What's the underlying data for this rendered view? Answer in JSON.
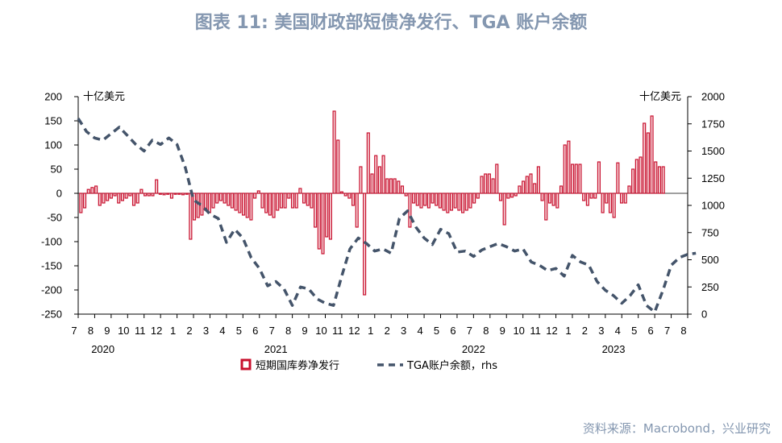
{
  "title": "图表 11: 美国财政部短债净发行、TGA 账户余额",
  "source": "资料来源：Macrobond，兴业研究",
  "colors": {
    "bar": "#c8102e",
    "line": "#44546a",
    "title": "#8497b0"
  },
  "chart_data": {
    "type": "bar",
    "left_unit": "十亿美元",
    "right_unit": "十亿美元",
    "left_axis": {
      "min": -250,
      "max": 200,
      "ticks": [
        "200",
        "150",
        "100",
        "50",
        "0",
        "-50",
        "-100",
        "-150",
        "-200",
        "-250"
      ]
    },
    "right_axis": {
      "min": 0,
      "max": 2000,
      "ticks": [
        "2000",
        "1750",
        "1500",
        "1250",
        "1000",
        "750",
        "500",
        "250",
        "0"
      ]
    },
    "x_tick_labels": [
      "7",
      "8",
      "9",
      "10",
      "11",
      "12",
      "1",
      "2",
      "3",
      "4",
      "5",
      "6",
      "7",
      "8",
      "9",
      "10",
      "11",
      "12",
      "1",
      "2",
      "3",
      "4",
      "5",
      "6",
      "7",
      "8",
      "9",
      "10",
      "11",
      "12",
      "1",
      "2",
      "3",
      "4",
      "5",
      "6",
      "7",
      "8"
    ],
    "year_labels": [
      "2020",
      "2021",
      "2022",
      "2023"
    ],
    "year_positions": [
      1.5,
      12,
      24,
      32.5
    ],
    "legend": {
      "bars": "短期国库券净发行",
      "line": "TGA账户余额，rhs"
    },
    "series": [
      {
        "name": "短期国库券净发行",
        "kind": "bar",
        "values": [
          -40,
          -30,
          8,
          12,
          15,
          -25,
          -20,
          -15,
          -10,
          -5,
          -20,
          -15,
          -10,
          -5,
          -25,
          -20,
          8,
          -5,
          -5,
          -5,
          28,
          -2,
          -3,
          -2,
          -10,
          -2,
          -2,
          -3,
          -2,
          -95,
          -55,
          -50,
          -45,
          -35,
          -40,
          -30,
          -20,
          -15,
          -20,
          -25,
          -30,
          -35,
          -40,
          -45,
          -50,
          -55,
          -10,
          5,
          -30,
          -40,
          -45,
          -50,
          -35,
          -30,
          -30,
          -10,
          -30,
          -30,
          10,
          -20,
          -25,
          -30,
          -70,
          -115,
          -125,
          -90,
          -95,
          170,
          110,
          3,
          -5,
          -10,
          -25,
          -70,
          55,
          -210,
          125,
          40,
          78,
          55,
          78,
          30,
          30,
          30,
          25,
          15,
          -5,
          -70,
          -20,
          -25,
          -30,
          -25,
          -30,
          -20,
          -25,
          -30,
          -35,
          -40,
          -35,
          -30,
          -35,
          -40,
          -35,
          -30,
          -20,
          -10,
          35,
          40,
          40,
          30,
          60,
          -15,
          -65,
          -10,
          -8,
          -5,
          15,
          25,
          35,
          40,
          20,
          55,
          -15,
          -55,
          -20,
          -25,
          -30,
          15,
          100,
          108,
          60,
          60,
          60,
          -15,
          -25,
          -10,
          -10,
          65,
          -40,
          -20,
          -40,
          -50,
          63,
          -20,
          -20,
          15,
          50,
          70,
          75,
          145,
          125,
          160,
          65,
          55,
          55
        ]
      },
      {
        "name": "TGA账户余额，rhs",
        "kind": "line",
        "x": [
          0,
          0.5,
          1,
          1.5,
          2,
          2.5,
          3,
          3.5,
          4,
          4.5,
          5,
          5.5,
          6,
          6.5,
          7,
          7.5,
          8,
          8.5,
          9,
          9.5,
          10,
          10.5,
          11,
          11.5,
          12,
          12.5,
          13,
          13.5,
          14,
          14.5,
          15,
          15.5,
          16,
          16.5,
          17,
          17.5,
          18,
          18.5,
          19,
          19.5,
          20,
          20.5,
          21,
          21.5,
          22,
          22.5,
          23,
          23.5,
          24,
          24.5,
          25,
          25.5,
          26,
          26.5,
          27,
          27.5,
          28,
          28.5,
          29,
          29.5,
          30,
          30.5,
          31,
          31.5,
          32,
          32.5,
          33,
          33.5,
          34,
          34.5,
          35,
          35.5,
          36,
          36.5,
          37,
          37.5
        ],
        "values": [
          1800,
          1680,
          1620,
          1600,
          1660,
          1720,
          1640,
          1560,
          1500,
          1600,
          1560,
          1620,
          1560,
          1350,
          1050,
          1000,
          920,
          880,
          660,
          780,
          700,
          520,
          420,
          260,
          300,
          230,
          80,
          250,
          230,
          140,
          100,
          80,
          350,
          600,
          700,
          650,
          580,
          600,
          560,
          880,
          950,
          800,
          700,
          640,
          780,
          740,
          570,
          580,
          530,
          590,
          620,
          650,
          620,
          580,
          600,
          480,
          450,
          400,
          420,
          350,
          540,
          480,
          450,
          300,
          220,
          170,
          100,
          170,
          270,
          80,
          20,
          220,
          450,
          520,
          550,
          560
        ]
      }
    ]
  }
}
